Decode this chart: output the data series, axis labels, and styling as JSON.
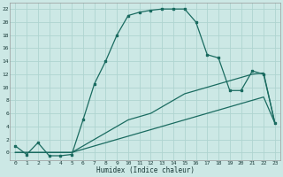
{
  "xlabel": "Humidex (Indice chaleur)",
  "ylabel": "",
  "bg_color": "#cce8e5",
  "grid_color": "#afd4d0",
  "line_color": "#1a6b60",
  "xlim": [
    -0.5,
    23.5
  ],
  "ylim": [
    -1.2,
    23
  ],
  "xticks": [
    0,
    1,
    2,
    3,
    4,
    5,
    6,
    7,
    8,
    9,
    10,
    11,
    12,
    13,
    14,
    15,
    16,
    17,
    18,
    19,
    20,
    21,
    22,
    23
  ],
  "yticks": [
    0,
    2,
    4,
    6,
    8,
    10,
    12,
    14,
    16,
    18,
    20,
    22
  ],
  "curve1_x": [
    0,
    1,
    2,
    3,
    4,
    5,
    6,
    7,
    8,
    9,
    10,
    11,
    12,
    13,
    14,
    15,
    16,
    17,
    18,
    19,
    20,
    21,
    22,
    23
  ],
  "curve1_y": [
    1.0,
    -0.3,
    1.5,
    -0.5,
    -0.5,
    -0.3,
    5.0,
    10.5,
    14.0,
    18.0,
    21.0,
    21.5,
    21.8,
    22.0,
    22.0,
    22.0,
    20.0,
    15.0,
    14.5,
    9.5,
    9.5,
    12.5,
    12.0,
    4.5
  ],
  "curve2_x": [
    0,
    5,
    6,
    7,
    8,
    9,
    10,
    11,
    12,
    13,
    14,
    15,
    16,
    17,
    18,
    19,
    20,
    21,
    22,
    23
  ],
  "curve2_y": [
    0,
    0,
    1.0,
    2.0,
    3.0,
    4.0,
    5.0,
    5.5,
    6.0,
    7.0,
    8.0,
    9.0,
    9.5,
    10.0,
    10.5,
    11.0,
    11.5,
    12.0,
    12.2,
    4.5
  ],
  "curve3_x": [
    0,
    5,
    6,
    7,
    8,
    9,
    10,
    11,
    12,
    13,
    14,
    15,
    16,
    17,
    18,
    19,
    20,
    21,
    22,
    23
  ],
  "curve3_y": [
    0,
    0,
    0.5,
    1.0,
    1.5,
    2.0,
    2.5,
    3.0,
    3.5,
    4.0,
    4.5,
    5.0,
    5.5,
    6.0,
    6.5,
    7.0,
    7.5,
    8.0,
    8.5,
    4.5
  ]
}
